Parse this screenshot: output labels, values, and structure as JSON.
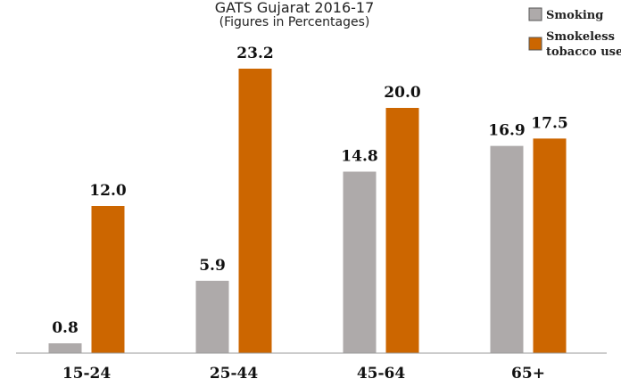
{
  "chart_data": {
    "type": "bar",
    "title": "GATS Gujarat 2016-17",
    "subtitle": "(Figures in Percentages)",
    "xlabel": "",
    "ylabel": "",
    "ylim": [
      0,
      25
    ],
    "grid": false,
    "legend_position": "top-right",
    "categories": [
      "15-24",
      "25-44",
      "45-64",
      "65+"
    ],
    "series": [
      {
        "name": "Smoking",
        "color": "#aeaaaa",
        "values": [
          0.8,
          5.9,
          14.8,
          16.9
        ],
        "labels": [
          "0.8",
          "5.9",
          "14.8",
          "16.9"
        ]
      },
      {
        "name": "Smokeless tobacco use",
        "legend_lines": [
          "Smokeless",
          "tobacco use"
        ],
        "color": "#cc6600",
        "values": [
          12.0,
          23.2,
          20.0,
          17.5
        ],
        "labels": [
          "12.0",
          "23.2",
          "20.0",
          "17.5"
        ]
      }
    ]
  }
}
